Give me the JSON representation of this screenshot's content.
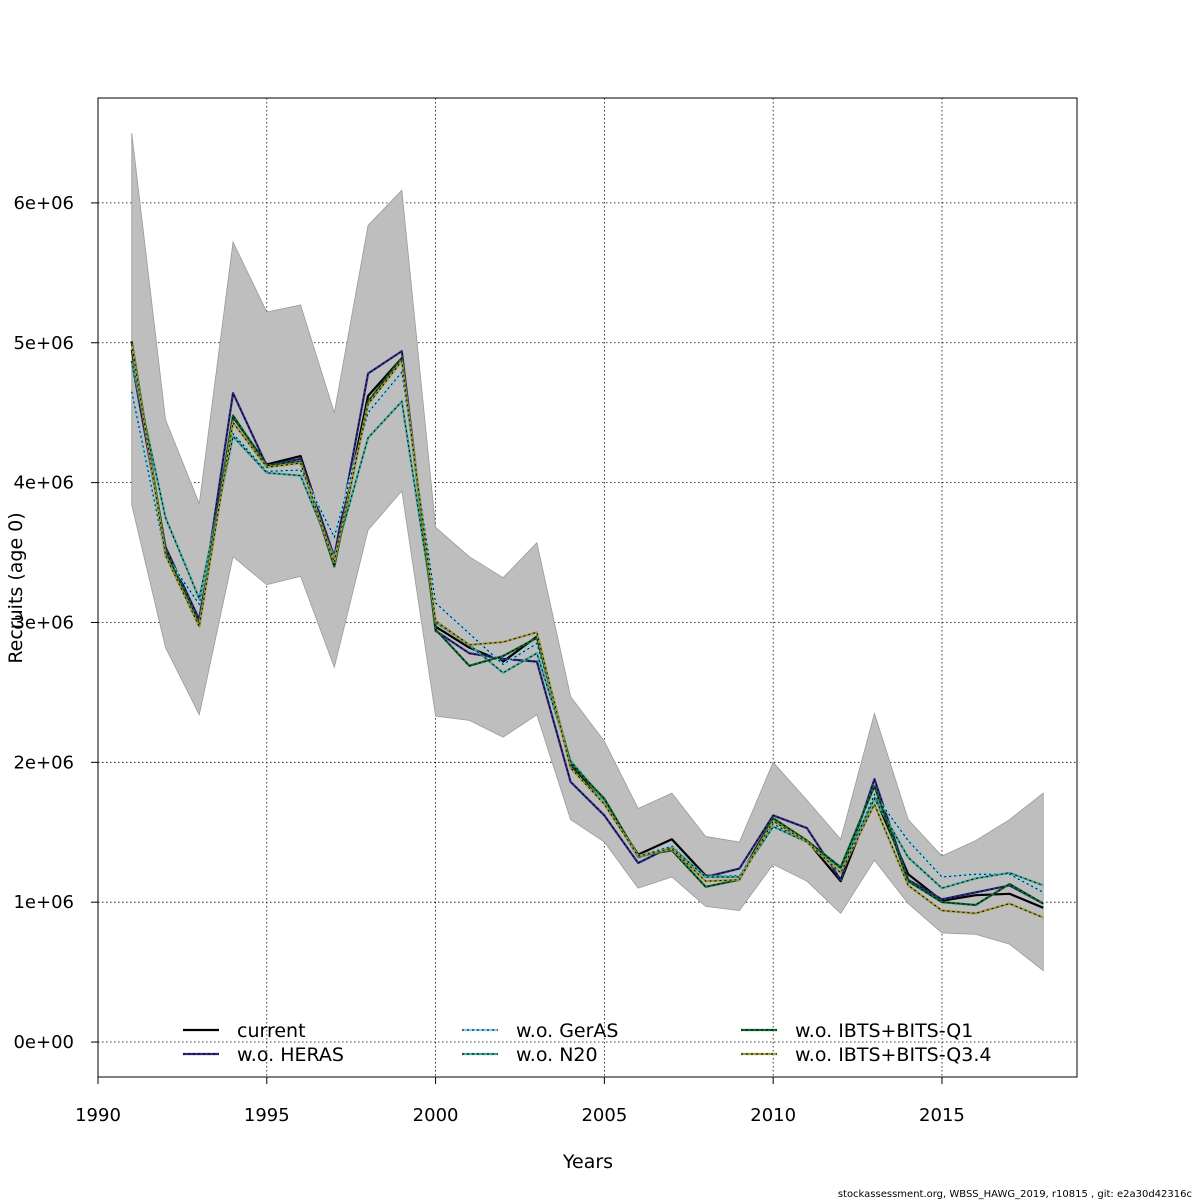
{
  "chart_data": {
    "type": "line",
    "title": "",
    "xlabel": "Years",
    "ylabel": "Recruits (age 0)",
    "xlim": [
      1990,
      2019
    ],
    "ylim": [
      -250000,
      6750000
    ],
    "x_ticks": [
      1990,
      1995,
      2000,
      2005,
      2010,
      2015
    ],
    "x_tick_labels": [
      "1990",
      "1995",
      "2000",
      "2005",
      "2010",
      "2015"
    ],
    "y_ticks": [
      0,
      1000000,
      2000000,
      3000000,
      4000000,
      5000000,
      6000000
    ],
    "y_tick_labels": [
      "0e+00",
      "1e+06",
      "2e+06",
      "3e+06",
      "4e+06",
      "5e+06",
      "6e+06"
    ],
    "grid": true,
    "legend_position": "bottom",
    "x": [
      1991,
      1992,
      1993,
      1994,
      1995,
      1996,
      1997,
      1998,
      1999,
      2000,
      2001,
      2002,
      2003,
      2004,
      2005,
      2006,
      2007,
      2008,
      2009,
      2010,
      2011,
      2012,
      2013,
      2014,
      2015,
      2016,
      2017,
      2018
    ],
    "band": {
      "color": "#bebebe",
      "upper": [
        6500000,
        4450000,
        3850000,
        5720000,
        5220000,
        5270000,
        4500000,
        5840000,
        6090000,
        3680000,
        3470000,
        3320000,
        3570000,
        2470000,
        2150000,
        1670000,
        1780000,
        1470000,
        1430000,
        2000000,
        1730000,
        1450000,
        2350000,
        1590000,
        1330000,
        1440000,
        1590000,
        1780000
      ],
      "lower": [
        3840000,
        2820000,
        2340000,
        3470000,
        3270000,
        3330000,
        2680000,
        3660000,
        3940000,
        2330000,
        2300000,
        2180000,
        2340000,
        1590000,
        1430000,
        1100000,
        1180000,
        970000,
        940000,
        1270000,
        1150000,
        920000,
        1300000,
        990000,
        780000,
        770000,
        700000,
        510000
      ]
    },
    "series": [
      {
        "name": "current",
        "color": "#000000",
        "dashed": false,
        "values": [
          4950000,
          3530000,
          3020000,
          4470000,
          4130000,
          4190000,
          3460000,
          4620000,
          4890000,
          2970000,
          2820000,
          2720000,
          2900000,
          1980000,
          1710000,
          1340000,
          1450000,
          1190000,
          1180000,
          1600000,
          1440000,
          1150000,
          1760000,
          1200000,
          1010000,
          1050000,
          1060000,
          960000
        ]
      },
      {
        "name": "w.o. HERAS",
        "color": "#2e2a83",
        "dashed": true,
        "values": [
          4870000,
          3540000,
          3020000,
          4640000,
          4120000,
          4170000,
          3470000,
          4780000,
          4940000,
          2940000,
          2780000,
          2740000,
          2720000,
          1860000,
          1620000,
          1280000,
          1400000,
          1180000,
          1240000,
          1620000,
          1530000,
          1160000,
          1880000,
          1160000,
          1020000,
          1070000,
          1120000,
          990000
        ]
      },
      {
        "name": "w.o. GerAS",
        "color": "#87ceeb",
        "dashed": true,
        "values": [
          4650000,
          3480000,
          3130000,
          4350000,
          4080000,
          4090000,
          3610000,
          4500000,
          4790000,
          3140000,
          2920000,
          2700000,
          2850000,
          2010000,
          1720000,
          1330000,
          1400000,
          1180000,
          1190000,
          1560000,
          1430000,
          1210000,
          1770000,
          1440000,
          1180000,
          1200000,
          1200000,
          1070000
        ]
      },
      {
        "name": "w.o. N20",
        "color": "#3ea89a",
        "dashed": true,
        "values": [
          4870000,
          3750000,
          3170000,
          4330000,
          4070000,
          4050000,
          3460000,
          4320000,
          4580000,
          3000000,
          2840000,
          2640000,
          2780000,
          2010000,
          1730000,
          1320000,
          1390000,
          1180000,
          1180000,
          1540000,
          1430000,
          1240000,
          1740000,
          1320000,
          1100000,
          1170000,
          1210000,
          1120000
        ]
      },
      {
        "name": "w.o. IBTS+BITS-Q1",
        "color": "#0b6b2f",
        "dashed": true,
        "values": [
          5010000,
          3510000,
          2990000,
          4480000,
          4120000,
          4150000,
          3400000,
          4580000,
          4890000,
          2950000,
          2690000,
          2760000,
          2890000,
          1990000,
          1740000,
          1330000,
          1370000,
          1110000,
          1160000,
          1600000,
          1440000,
          1250000,
          1830000,
          1150000,
          1000000,
          980000,
          1130000,
          990000
        ]
      },
      {
        "name": "w.o. IBTS+BITS-Q3.4",
        "color": "#a09a3e",
        "dashed": true,
        "values": [
          4990000,
          3480000,
          2970000,
          4430000,
          4110000,
          4140000,
          3430000,
          4560000,
          4870000,
          3010000,
          2840000,
          2860000,
          2930000,
          1960000,
          1700000,
          1330000,
          1380000,
          1150000,
          1160000,
          1580000,
          1430000,
          1210000,
          1700000,
          1120000,
          940000,
          920000,
          990000,
          890000
        ]
      }
    ]
  },
  "footer": {
    "text": "stockassessment.org, WBSS_HAWG_2019, r10815 , git: e2a30d42316c"
  }
}
